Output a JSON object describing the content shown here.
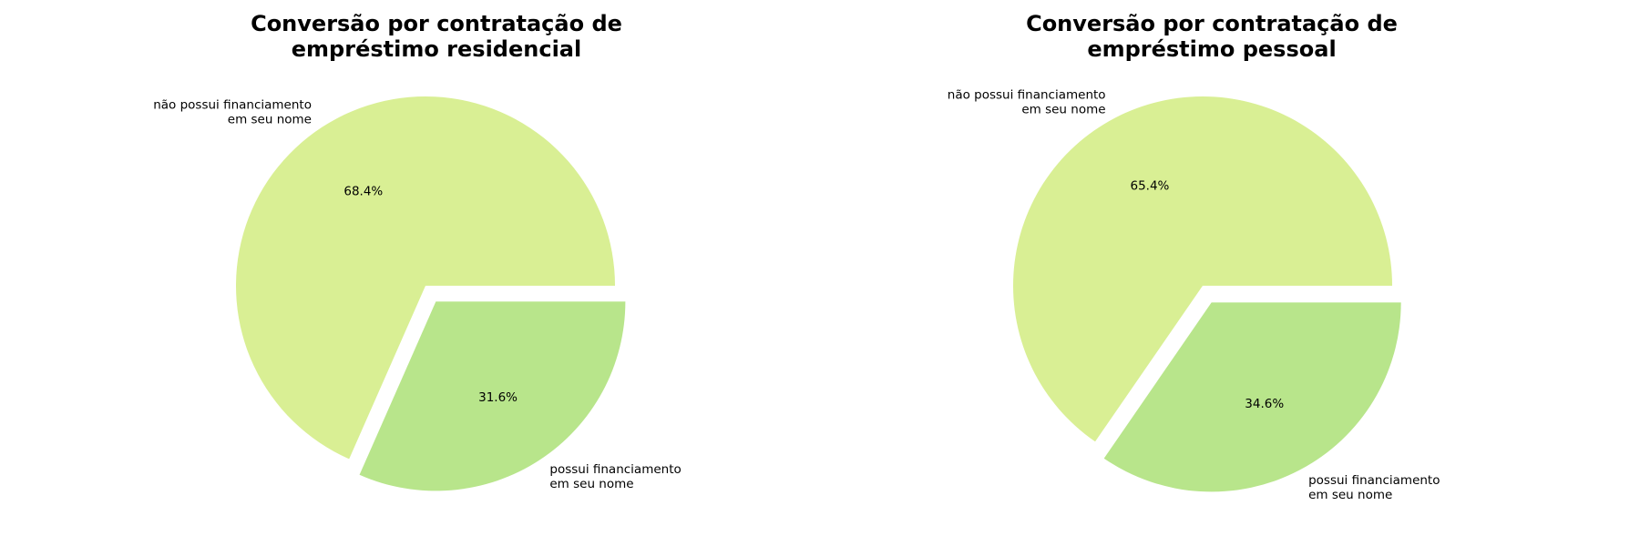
{
  "chart_data": [
    {
      "type": "pie",
      "title_lines": [
        "Conversão por contratação de",
        "empréstimo residencial"
      ],
      "slices": [
        {
          "label_lines": [
            "não possui financiamento",
            "em seu nome"
          ],
          "value": 68.4,
          "pct_label": "68.4%",
          "color": "#d9ef94",
          "exploded": false
        },
        {
          "label_lines": [
            "possui financiamento",
            "em seu nome"
          ],
          "value": 31.6,
          "pct_label": "31.6%",
          "color": "#b8e58b",
          "exploded": true
        }
      ],
      "start_angle_deg": 0,
      "direction": "counterclockwise"
    },
    {
      "type": "pie",
      "title_lines": [
        "Conversão por contratação de",
        "empréstimo pessoal"
      ],
      "slices": [
        {
          "label_lines": [
            "não possui financiamento",
            "em seu nome"
          ],
          "value": 65.4,
          "pct_label": "65.4%",
          "color": "#d9ef94",
          "exploded": false
        },
        {
          "label_lines": [
            "possui financiamento",
            "em seu nome"
          ],
          "value": 34.6,
          "pct_label": "34.6%",
          "color": "#b8e58b",
          "exploded": true
        }
      ],
      "start_angle_deg": 0,
      "direction": "counterclockwise"
    }
  ]
}
